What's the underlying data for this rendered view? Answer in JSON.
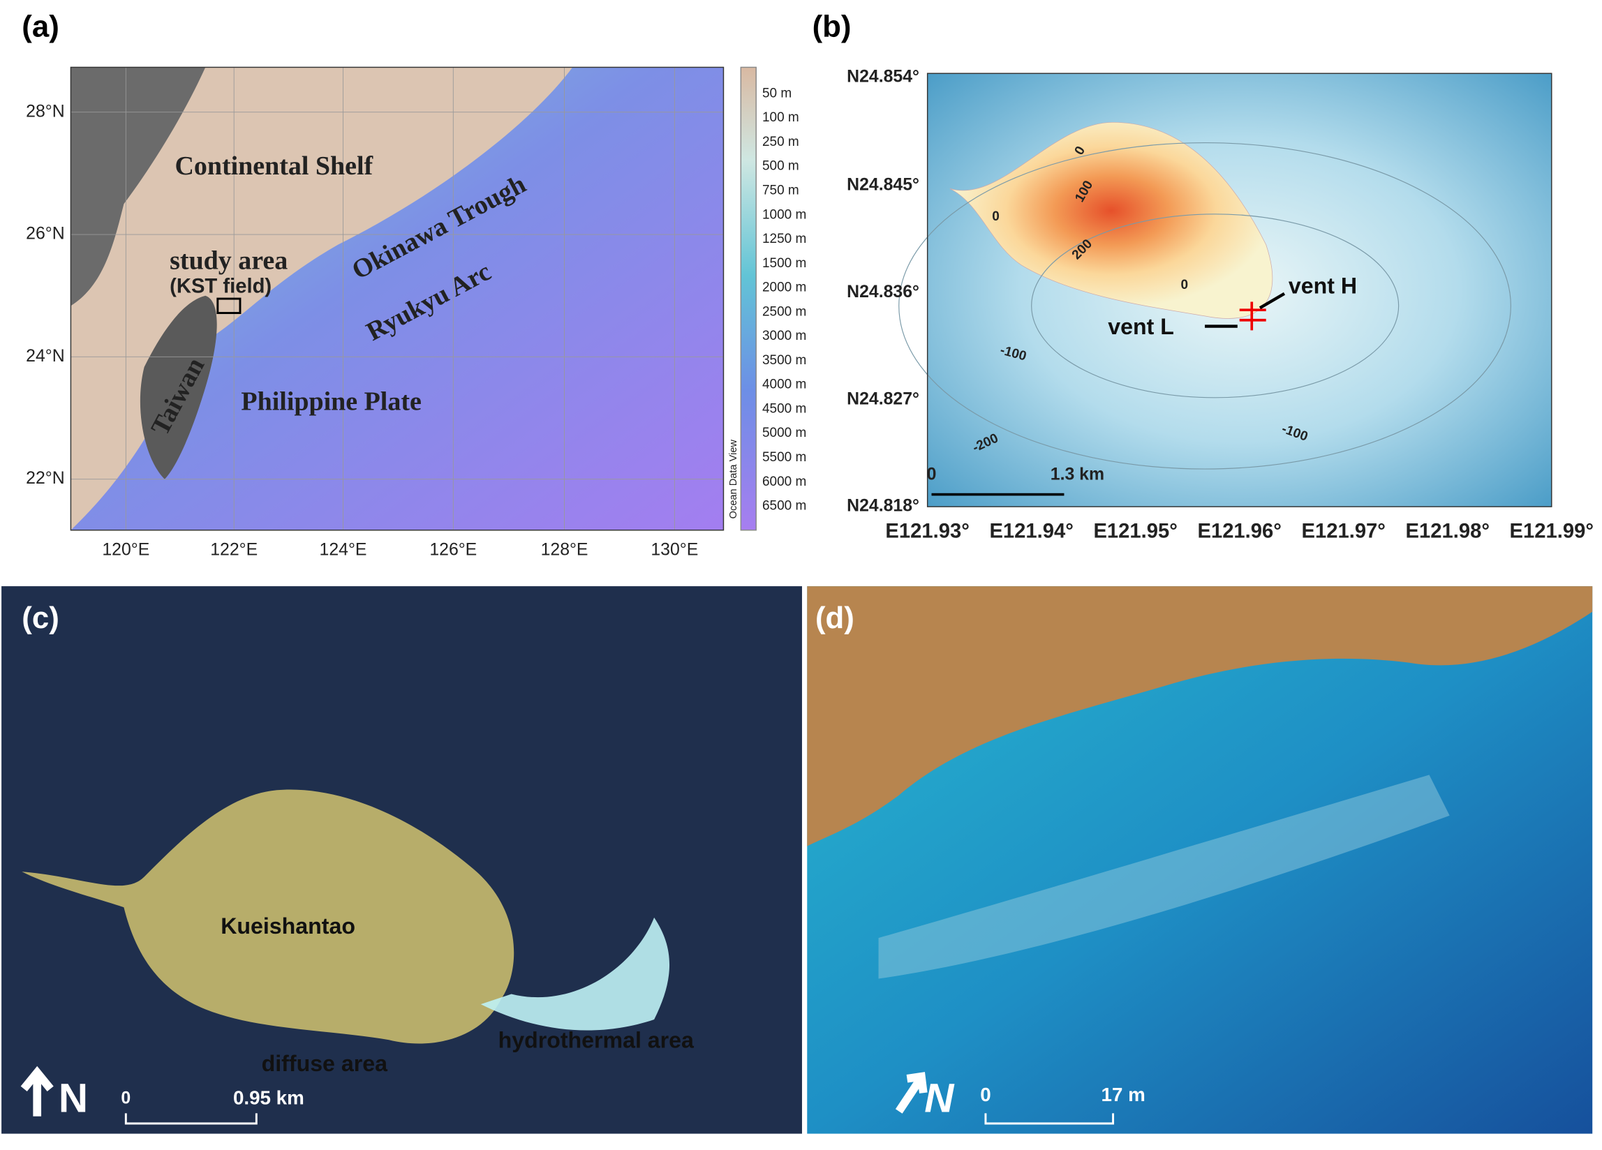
{
  "panels": [
    {
      "label": "(a)",
      "yticks": [
        "28°N",
        "26°N",
        "24°N",
        "22°N"
      ],
      "xticks": [
        "120°E",
        "122°E",
        "124°E",
        "126°E",
        "128°E",
        "130°E"
      ],
      "legend": [
        "50 m",
        "100 m",
        "250 m",
        "500 m",
        "750 m",
        "1000 m",
        "1250 m",
        "1500 m",
        "2000 m",
        "2500 m",
        "3000 m",
        "3500 m",
        "4000 m",
        "4500 m",
        "5000 m",
        "5500 m",
        "6000 m",
        "6500 m"
      ],
      "legend_title": "Ocean Data View",
      "annotations": [
        "Continental Shelf",
        "Okinawa Trough",
        "study area",
        "(KST field)",
        "Ryukyu Arc",
        "Taiwan",
        "Philippine Plate"
      ]
    },
    {
      "label": "(b)",
      "yticks": [
        "N24.854°",
        "N24.845°",
        "N24.836°",
        "N24.827°",
        "N24.818°"
      ],
      "xticks": [
        "E121.93°",
        "E121.94°",
        "E121.95°",
        "E121.96°",
        "E121.97°",
        "E121.98°",
        "E121.99°"
      ],
      "contours": [
        "0",
        "0",
        "100",
        "200",
        "0",
        "-100",
        "-100",
        "-200"
      ],
      "annotations": [
        "vent H",
        "vent L"
      ],
      "scale": [
        "0",
        "1.3 km"
      ]
    },
    {
      "label": "(c)",
      "annotations": [
        "Kueishantao",
        "diffuse area",
        "hydrothermal area"
      ],
      "north": "N",
      "scale": [
        "0",
        "0.95 km"
      ]
    },
    {
      "label": "(d)",
      "north": "N",
      "scale": [
        "0",
        "17 m"
      ]
    }
  ]
}
